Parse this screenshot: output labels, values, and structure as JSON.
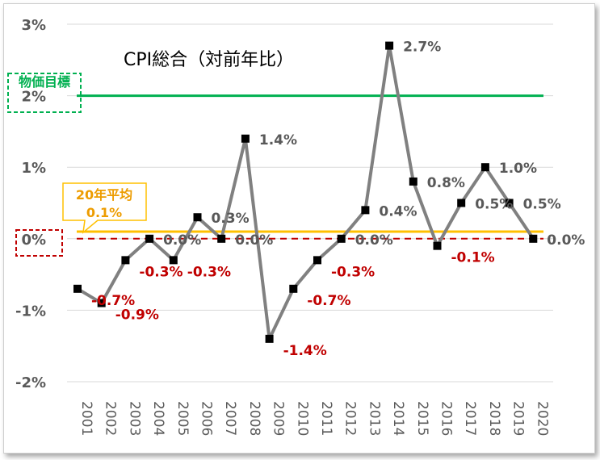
{
  "chart_data": {
    "type": "line",
    "title": "CPI総合（対前年比）",
    "xlabel": "",
    "ylabel": "",
    "ylim": [
      -2,
      3
    ],
    "y_ticks": [
      "3%",
      "2%",
      "1%",
      "0%",
      "-1%",
      "-2%"
    ],
    "grid": true,
    "categories": [
      "2001",
      "2002",
      "2003",
      "2004",
      "2005",
      "2006",
      "2007",
      "2008",
      "2009",
      "2010",
      "2011",
      "2012",
      "2013",
      "2014",
      "2015",
      "2016",
      "2017",
      "2018",
      "2019",
      "2020"
    ],
    "series": [
      {
        "values": [
          -0.7,
          -0.9,
          -0.3,
          0.0,
          -0.3,
          0.3,
          0.0,
          1.4,
          -1.4,
          -0.7,
          -0.3,
          0.0,
          0.4,
          2.7,
          0.8,
          -0.1,
          0.5,
          1.0,
          0.5,
          0.0
        ],
        "data_labels": [
          "-0.7%",
          "-0.9%",
          "-0.3%",
          "0.0%",
          "-0.3%",
          "0.3%",
          "0.0%",
          "1.4%",
          "-1.4%",
          "-0.7%",
          "-0.3%",
          "0.0%",
          "0.4%",
          "2.7%",
          "0.8%",
          "-0.1%",
          "0.5%",
          "1.0%",
          "0.5%",
          "0.0%"
        ],
        "color": "#808080",
        "marker_color": "#000000"
      }
    ],
    "reference_lines": [
      {
        "value": 2.0,
        "color": "#00b050",
        "style": "solid"
      },
      {
        "value": 0.1,
        "color": "#ffc000",
        "style": "solid"
      },
      {
        "value": 0.0,
        "color": "#c00000",
        "style": "dashed"
      }
    ],
    "annotations": [
      {
        "text": "物価目標",
        "color": "#00b050",
        "border": "dashed"
      },
      {
        "lines": [
          "20年平均",
          "0.1%"
        ],
        "color": "#ed9c00",
        "border": "#ffc000"
      },
      {
        "text": "",
        "color": "#c00000",
        "border": "dashed"
      }
    ]
  }
}
